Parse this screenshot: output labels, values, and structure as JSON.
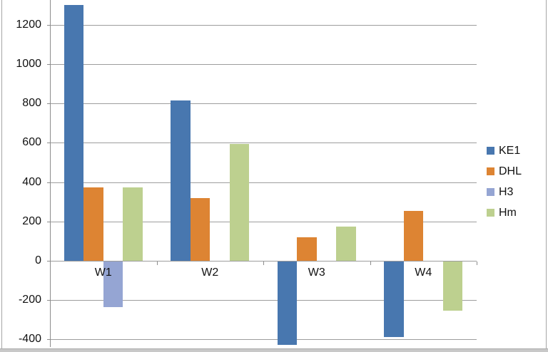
{
  "chart_data": {
    "type": "bar",
    "title": "",
    "xlabel": "",
    "ylabel": "",
    "categories": [
      "W1",
      "W2",
      "W3",
      "W4"
    ],
    "series": [
      {
        "name": "KE1",
        "color": "#4877af",
        "values": [
          1300,
          815,
          -425,
          -385
        ]
      },
      {
        "name": "DHL",
        "color": "#dd8433",
        "values": [
          375,
          320,
          120,
          255
        ]
      },
      {
        "name": "H3",
        "color": "#95a5d3",
        "values": [
          -230,
          0,
          0,
          0
        ]
      },
      {
        "name": "Hm",
        "color": "#bdd08f",
        "values": [
          375,
          595,
          175,
          -250
        ]
      }
    ],
    "yticks": [
      -400,
      -200,
      0,
      200,
      400,
      600,
      800,
      1000,
      1200
    ],
    "ylim": [
      -440,
      1325
    ],
    "grid": true,
    "legend_position": "right"
  },
  "colors": {
    "gridline": "#9d9d9d",
    "axis": "#8c8c8c",
    "frame_border": "#a6a6a6",
    "bottom_strip": "#c8c8c8",
    "text": "#111111"
  }
}
